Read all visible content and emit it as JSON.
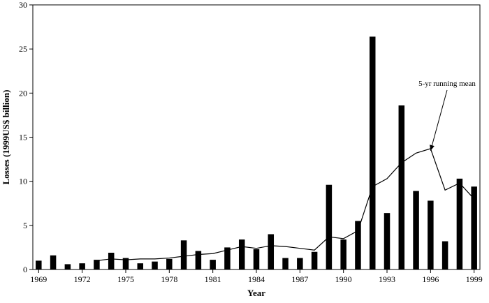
{
  "chart_data": {
    "type": "bar",
    "title": "",
    "xlabel": "Year",
    "ylabel": "Losses (1999US$ billion)",
    "ylim": [
      0,
      30
    ],
    "yticks": [
      0,
      5,
      10,
      15,
      20,
      25,
      30
    ],
    "xlim": [
      1969,
      1999
    ],
    "xticks": [
      1969,
      1972,
      1975,
      1978,
      1981,
      1984,
      1987,
      1990,
      1993,
      1996,
      1999
    ],
    "grid": false,
    "series": [
      {
        "type": "bar",
        "color": "#000000",
        "x": [
          1969,
          1970,
          1971,
          1972,
          1973,
          1974,
          1975,
          1976,
          1977,
          1978,
          1979,
          1980,
          1981,
          1982,
          1983,
          1984,
          1985,
          1986,
          1987,
          1988,
          1989,
          1990,
          1991,
          1992,
          1993,
          1994,
          1995,
          1996,
          1997,
          1998,
          1999
        ],
        "values": [
          1.0,
          1.6,
          0.6,
          0.7,
          1.1,
          1.9,
          1.3,
          0.7,
          0.9,
          1.2,
          3.3,
          2.1,
          1.1,
          2.5,
          3.4,
          2.3,
          4.0,
          1.3,
          1.3,
          2.0,
          9.6,
          3.4,
          5.5,
          26.4,
          6.4,
          18.6,
          8.9,
          7.8,
          3.2,
          10.3,
          9.4
        ]
      },
      {
        "type": "line",
        "color": "#000000",
        "x": [
          1973,
          1974,
          1975,
          1976,
          1977,
          1978,
          1979,
          1980,
          1981,
          1982,
          1983,
          1984,
          1985,
          1986,
          1987,
          1988,
          1989,
          1990,
          1991,
          1992,
          1993,
          1994,
          1995,
          1996,
          1997,
          1998,
          1999
        ],
        "values": [
          1.0,
          1.2,
          1.1,
          1.2,
          1.2,
          1.3,
          1.5,
          1.7,
          1.8,
          2.2,
          2.6,
          2.4,
          2.7,
          2.6,
          2.4,
          2.2,
          3.7,
          3.5,
          4.4,
          9.4,
          10.3,
          12.1,
          13.2,
          13.7,
          9.0,
          9.8,
          8.0
        ]
      }
    ],
    "annotations": [
      {
        "text": "5-yr running mean",
        "x": 1996,
        "y": 13.7
      }
    ]
  }
}
